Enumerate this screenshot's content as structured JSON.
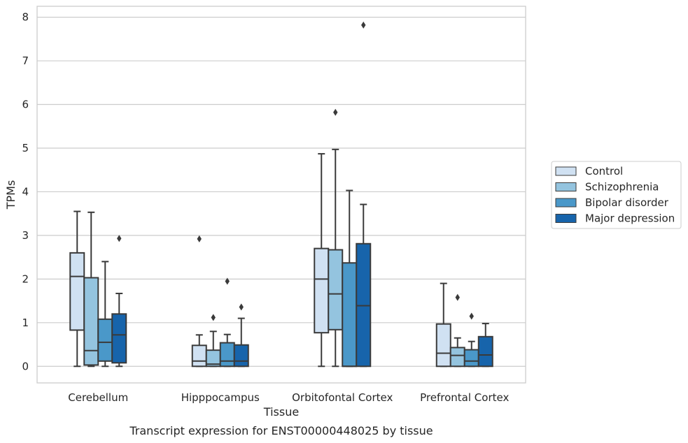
{
  "caption": "Transcript expression for ENST00000448025 by tissue",
  "chart_data": {
    "type": "boxplot",
    "xlabel": "Tissue",
    "ylabel": "TPMs",
    "ylim": [
      -0.38,
      8.25
    ],
    "yticks": [
      0,
      1,
      2,
      3,
      4,
      5,
      6,
      7,
      8
    ],
    "grid": "horizontal",
    "legend_position": "right",
    "categories": [
      "Cerebellum",
      "Hipppocampus",
      "Orbitofontal Cortex",
      "Prefrontal Cortex"
    ],
    "series": [
      {
        "name": "Control",
        "color": "#d0e1f2",
        "boxes": [
          {
            "whislo": 0.0,
            "q1": 0.83,
            "med": 2.06,
            "q3": 2.6,
            "whishi": 3.55,
            "fliers": []
          },
          {
            "whislo": 0.0,
            "q1": 0.0,
            "med": 0.12,
            "q3": 0.48,
            "whishi": 0.72,
            "fliers": [
              2.92
            ]
          },
          {
            "whislo": 0.0,
            "q1": 0.77,
            "med": 2.0,
            "q3": 2.7,
            "whishi": 4.87,
            "fliers": []
          },
          {
            "whislo": 0.0,
            "q1": 0.0,
            "med": 0.3,
            "q3": 0.97,
            "whishi": 1.9,
            "fliers": []
          }
        ]
      },
      {
        "name": "Schizophrenia",
        "color": "#94c4df",
        "boxes": [
          {
            "whislo": 0.0,
            "q1": 0.03,
            "med": 0.36,
            "q3": 2.03,
            "whishi": 3.53,
            "fliers": []
          },
          {
            "whislo": 0.0,
            "q1": 0.0,
            "med": 0.05,
            "q3": 0.37,
            "whishi": 0.8,
            "fliers": [
              1.12
            ]
          },
          {
            "whislo": 0.0,
            "q1": 0.84,
            "med": 1.66,
            "q3": 2.67,
            "whishi": 4.97,
            "fliers": [
              5.82
            ]
          },
          {
            "whislo": 0.0,
            "q1": 0.0,
            "med": 0.25,
            "q3": 0.43,
            "whishi": 0.65,
            "fliers": [
              1.58
            ]
          }
        ]
      },
      {
        "name": "Bipolar disorder",
        "color": "#4a98c9",
        "boxes": [
          {
            "whislo": 0.0,
            "q1": 0.12,
            "med": 0.55,
            "q3": 1.08,
            "whishi": 2.4,
            "fliers": []
          },
          {
            "whislo": 0.0,
            "q1": 0.0,
            "med": 0.12,
            "q3": 0.54,
            "whishi": 0.73,
            "fliers": [
              1.95
            ]
          },
          {
            "whislo": 0.0,
            "q1": 0.0,
            "med": 0.0,
            "q3": 2.37,
            "whishi": 4.03,
            "fliers": []
          },
          {
            "whislo": 0.0,
            "q1": 0.0,
            "med": 0.12,
            "q3": 0.38,
            "whishi": 0.57,
            "fliers": [
              1.15
            ]
          }
        ]
      },
      {
        "name": "Major depression",
        "color": "#1764ab",
        "boxes": [
          {
            "whislo": 0.0,
            "q1": 0.08,
            "med": 0.72,
            "q3": 1.2,
            "whishi": 1.67,
            "fliers": [
              2.93
            ]
          },
          {
            "whislo": 0.0,
            "q1": 0.0,
            "med": 0.12,
            "q3": 0.49,
            "whishi": 1.1,
            "fliers": [
              1.36
            ]
          },
          {
            "whislo": 0.0,
            "q1": 0.0,
            "med": 1.39,
            "q3": 2.81,
            "whishi": 3.71,
            "fliers": [
              7.82
            ]
          },
          {
            "whislo": 0.0,
            "q1": 0.0,
            "med": 0.26,
            "q3": 0.68,
            "whishi": 0.98,
            "fliers": []
          }
        ]
      }
    ]
  }
}
